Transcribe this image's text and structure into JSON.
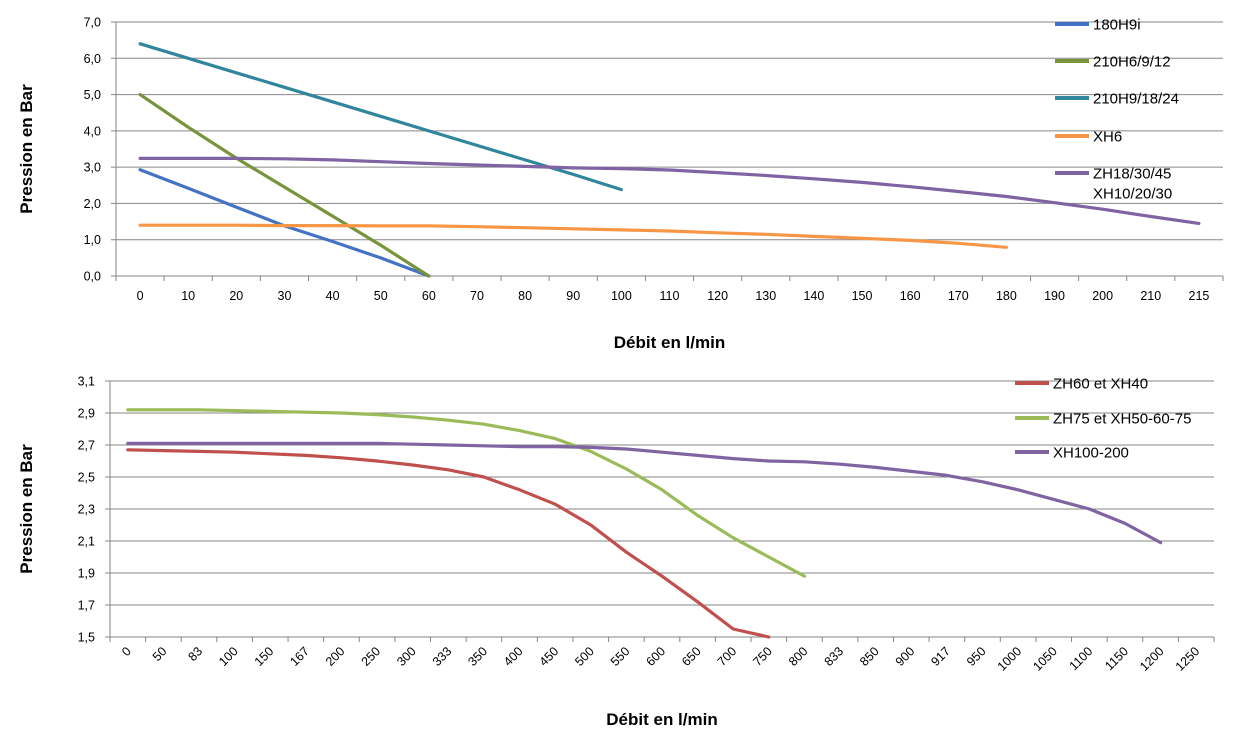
{
  "chart_data": [
    {
      "type": "line",
      "title": "",
      "xlabel": "Débit en l/min",
      "ylabel": "Pression en Bar",
      "ylim": [
        0,
        7
      ],
      "ytick_labels": [
        "0,0",
        "1,0",
        "2,0",
        "3,0",
        "4,0",
        "5,0",
        "6,0",
        "7,0"
      ],
      "categories": [
        "0",
        "10",
        "20",
        "30",
        "40",
        "50",
        "60",
        "70",
        "80",
        "90",
        "100",
        "110",
        "120",
        "130",
        "140",
        "150",
        "160",
        "170",
        "180",
        "190",
        "200",
        "210",
        "215"
      ],
      "grid": "horizontal",
      "legend_position": "right",
      "series": [
        {
          "name": "180H9i",
          "color": "#4472C4",
          "label_lines": [
            "180H9i"
          ],
          "values": [
            2.93,
            2.42,
            1.9,
            1.38,
            0.95,
            0.5,
            0.0,
            null,
            null,
            null,
            null,
            null,
            null,
            null,
            null,
            null,
            null,
            null,
            null,
            null,
            null,
            null,
            null
          ]
        },
        {
          "name": "210H6/9/12",
          "color": "#77933C",
          "label_lines": [
            "210H6/9/12"
          ],
          "values": [
            5.0,
            4.1,
            3.25,
            2.45,
            1.65,
            0.85,
            0.0,
            null,
            null,
            null,
            null,
            null,
            null,
            null,
            null,
            null,
            null,
            null,
            null,
            null,
            null,
            null,
            null
          ]
        },
        {
          "name": "210H9/18/24",
          "color": "#31859C",
          "label_lines": [
            "210H9/18/24"
          ],
          "values": [
            6.4,
            6.0,
            5.6,
            5.2,
            4.8,
            4.4,
            4.0,
            3.6,
            3.2,
            2.8,
            2.38,
            null,
            null,
            null,
            null,
            null,
            null,
            null,
            null,
            null,
            null,
            null,
            null
          ]
        },
        {
          "name": "XH6",
          "color": "#F79646",
          "label_lines": [
            "XH6"
          ],
          "values": [
            1.4,
            1.4,
            1.4,
            1.39,
            1.39,
            1.38,
            1.38,
            1.36,
            1.33,
            1.3,
            1.27,
            1.24,
            1.19,
            1.15,
            1.09,
            1.04,
            0.98,
            0.9,
            0.79,
            null,
            null,
            null,
            null
          ]
        },
        {
          "name": "ZH18/30/45 XH10/20/30",
          "color": "#7F63A2",
          "label_lines": [
            "ZH18/30/45",
            "XH10/20/30"
          ],
          "values": [
            3.24,
            3.24,
            3.24,
            3.23,
            3.2,
            3.15,
            3.1,
            3.06,
            3.02,
            2.98,
            2.96,
            2.92,
            2.85,
            2.77,
            2.68,
            2.58,
            2.46,
            2.33,
            2.19,
            2.02,
            1.84,
            1.64,
            1.45
          ]
        }
      ]
    },
    {
      "type": "line",
      "title": "",
      "xlabel": "Débit en l/min",
      "ylabel": "Pression en Bar",
      "ylim": [
        1.5,
        3.1
      ],
      "ytick_labels": [
        "1,5",
        "1,7",
        "1,9",
        "2,1",
        "2,3",
        "2,5",
        "2,7",
        "2,9",
        "3,1"
      ],
      "categories": [
        "0",
        "50",
        "83",
        "100",
        "150",
        "167",
        "200",
        "250",
        "300",
        "333",
        "350",
        "400",
        "450",
        "500",
        "550",
        "600",
        "650",
        "700",
        "750",
        "800",
        "833",
        "850",
        "900",
        "917",
        "950",
        "1000",
        "1050",
        "1100",
        "1150",
        "1200",
        "1250"
      ],
      "grid": "horizontal",
      "legend_position": "right",
      "series": [
        {
          "name": "ZH60 et XH40",
          "color": "#C0504D",
          "label_lines": [
            "ZH60 et XH40"
          ],
          "values": [
            2.67,
            2.665,
            2.66,
            2.655,
            2.645,
            2.635,
            2.62,
            2.6,
            2.575,
            2.545,
            2.5,
            2.42,
            2.33,
            2.2,
            2.03,
            1.88,
            1.72,
            1.55,
            1.5,
            null,
            null,
            null,
            null,
            null,
            null,
            null,
            null,
            null,
            null,
            null,
            null
          ]
        },
        {
          "name": "ZH75 et XH50-60-75",
          "color": "#9BBB59",
          "label_lines": [
            "ZH75 et XH50-60-75"
          ],
          "values": [
            2.92,
            2.92,
            2.92,
            2.915,
            2.91,
            2.905,
            2.9,
            2.89,
            2.875,
            2.855,
            2.83,
            2.79,
            2.74,
            2.66,
            2.55,
            2.42,
            2.26,
            2.12,
            2.0,
            1.88,
            null,
            null,
            null,
            null,
            null,
            null,
            null,
            null,
            null,
            null,
            null
          ]
        },
        {
          "name": "XH100-200",
          "color": "#8064A2",
          "label_lines": [
            "XH100-200"
          ],
          "values": [
            2.71,
            2.71,
            2.71,
            2.71,
            2.71,
            2.71,
            2.71,
            2.71,
            2.705,
            2.7,
            2.695,
            2.69,
            2.69,
            2.685,
            2.675,
            2.655,
            2.635,
            2.615,
            2.6,
            2.595,
            2.58,
            2.56,
            2.535,
            2.51,
            2.47,
            2.42,
            2.36,
            2.3,
            2.21,
            2.09,
            null
          ]
        }
      ]
    }
  ]
}
